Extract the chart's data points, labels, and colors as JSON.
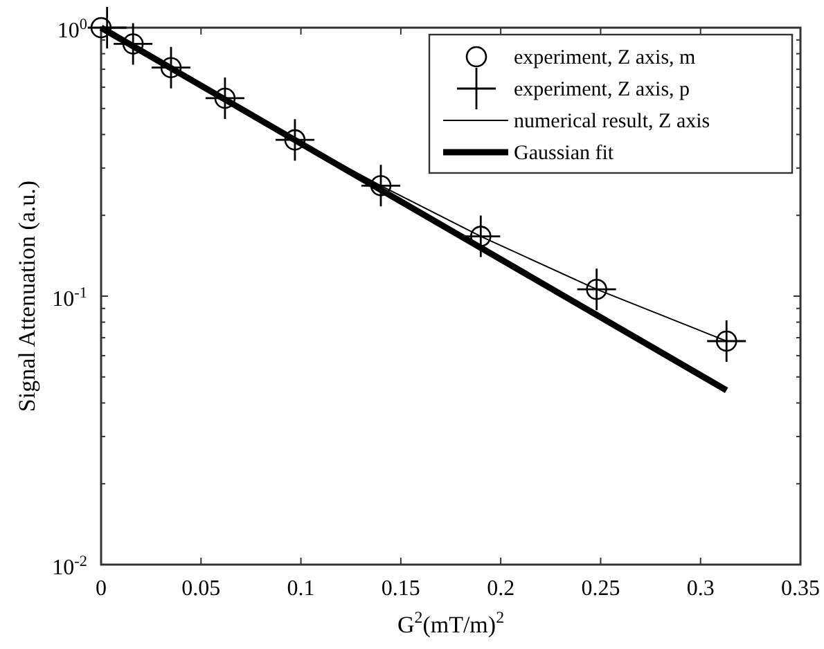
{
  "chart_data": {
    "type": "line",
    "xlabel": "G$^{2}$(mT/m)$^{2}$",
    "ylabel": "Signal Attenuation (a.u.)",
    "log": "y",
    "xlim": [
      0,
      0.35
    ],
    "ylim": [
      0.01,
      1
    ],
    "xticks": [
      0,
      0.05,
      0.1,
      0.15,
      0.2,
      0.25,
      0.3,
      0.35
    ],
    "yticks": [
      {
        "value": 0.01,
        "label": "10$^{-2}$"
      },
      {
        "value": 0.1,
        "label": "10$^{-1}$"
      },
      {
        "value": 1,
        "label": "10$^{0}$"
      }
    ],
    "legend": "top right",
    "grid": false,
    "series": [
      {
        "name": "experiment, Z axis, m",
        "type": "scatter",
        "marker": "circle",
        "color": "#000000",
        "x": [
          0,
          0.016,
          0.035,
          0.062,
          0.097,
          0.14,
          0.19,
          0.248,
          0.313
        ],
        "values": [
          1,
          0.87,
          0.71,
          0.546,
          0.382,
          0.258,
          0.167,
          0.106,
          0.068
        ]
      },
      {
        "name": "experiment, Z axis, p",
        "type": "scatter",
        "marker": "cross",
        "color": "#000000",
        "x": [
          0.003,
          0.016,
          0.035,
          0.062,
          0.097,
          0.14,
          0.19,
          0.248,
          0.313
        ],
        "values": [
          1,
          0.87,
          0.71,
          0.546,
          0.382,
          0.258,
          0.167,
          0.106,
          0.068
        ]
      },
      {
        "name": "numerical result, Z axis",
        "marker": "none",
        "color": "#000000",
        "x": [
          0,
          0.016,
          0.035,
          0.062,
          0.097,
          0.14,
          0.19,
          0.248,
          0.313
        ],
        "values": [
          1,
          0.87,
          0.71,
          0.546,
          0.382,
          0.258,
          0.167,
          0.106,
          0.068
        ]
      },
      {
        "name": "Gaussian fit",
        "marker": "none",
        "color": "#000000",
        "x": [
          0,
          0.313
        ],
        "values": [
          1,
          0.0446
        ]
      }
    ]
  }
}
